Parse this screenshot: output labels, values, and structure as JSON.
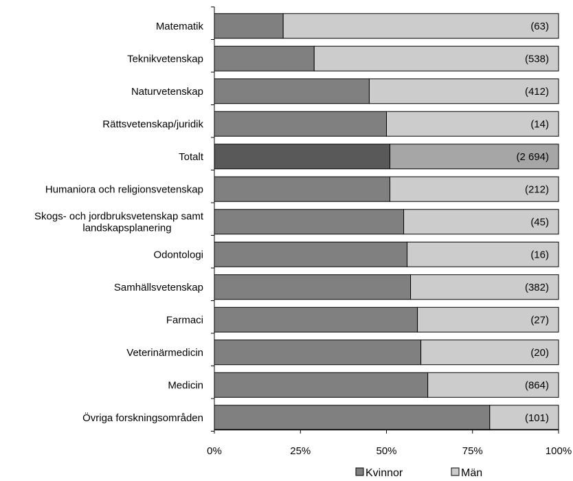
{
  "chart_data": {
    "type": "bar",
    "orientation": "horizontal",
    "stacked": "percent",
    "categories": [
      "Matematik",
      "Teknikvetenskap",
      "Naturvetenskap",
      "Rättsvetenskap/juridik",
      "Totalt",
      "Humaniora och religionsvetenskap",
      "Skogs- och jordbruksvetenskap samt landskapsplanering",
      "Odontologi",
      "Samhällsvetenskap",
      "Farmaci",
      "Veterinärmedicin",
      "Medicin",
      "Övriga forskningsområden"
    ],
    "category_label_lines": [
      [
        "Matematik"
      ],
      [
        "Teknikvetenskap"
      ],
      [
        "Naturvetenskap"
      ],
      [
        "Rättsvetenskap/juridik"
      ],
      [
        "Totalt"
      ],
      [
        "Humaniora och religionsvetenskap"
      ],
      [
        "Skogs- och jordbruksvetenskap samt",
        "landskapsplanering"
      ],
      [
        "Odontologi"
      ],
      [
        "Samhällsvetenskap"
      ],
      [
        "Farmaci"
      ],
      [
        "Veterinärmedicin"
      ],
      [
        "Medicin"
      ],
      [
        "Övriga forskningsområden"
      ]
    ],
    "series": [
      {
        "name": "Kvinnor",
        "values": [
          20,
          29,
          45,
          50,
          51,
          51,
          55,
          56,
          57,
          59,
          60,
          62,
          80
        ]
      },
      {
        "name": "Män",
        "values": [
          80,
          71,
          55,
          50,
          49,
          49,
          45,
          44,
          43,
          41,
          40,
          38,
          20
        ]
      }
    ],
    "count_labels": [
      "(63)",
      "(538)",
      "(412)",
      "(14)",
      "(2 694)",
      "(212)",
      "(45)",
      "(16)",
      "(382)",
      "(27)",
      "(20)",
      "(864)",
      "(101)"
    ],
    "highlight_category": "Totalt",
    "xlim": [
      0,
      100
    ],
    "xticks": [
      "0%",
      "25%",
      "50%",
      "75%",
      "100%"
    ],
    "grid": false,
    "legend_position": "bottom",
    "colors": {
      "Kvinnor": "#808080",
      "Män": "#cccccc",
      "Kvinnor_highlight": "#595959",
      "Män_highlight": "#a6a6a6",
      "outline": "#000000"
    },
    "title": "",
    "xlabel": "",
    "ylabel": ""
  }
}
